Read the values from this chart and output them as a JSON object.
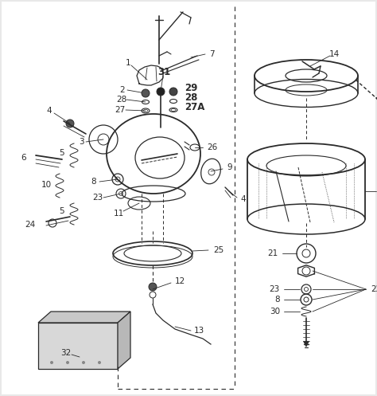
{
  "bg_color": "#e8e8e8",
  "line_color": "#2a2a2a",
  "fig_w": 4.74,
  "fig_h": 4.97,
  "dpi": 100
}
